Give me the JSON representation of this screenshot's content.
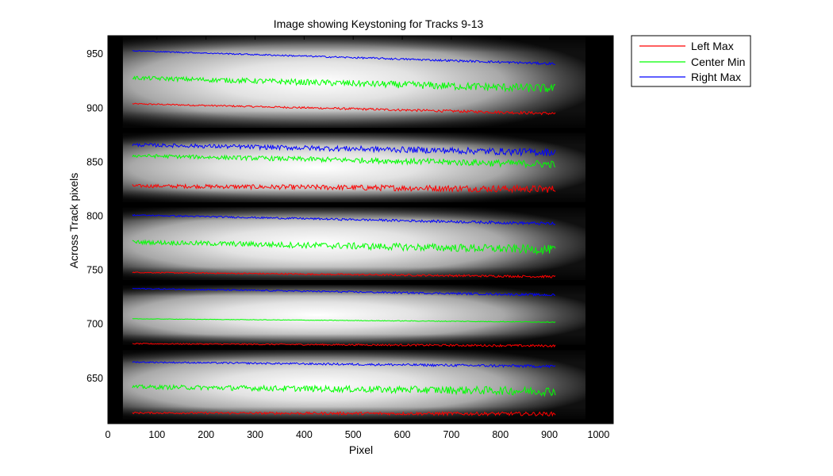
{
  "chart_data": {
    "type": "line",
    "title": "Image showing Keystoning for Tracks 9-13",
    "xlabel": "Pixel",
    "ylabel": "Across Track pixels",
    "xlim": [
      0,
      1030
    ],
    "ylim": [
      608,
      967
    ],
    "xticks": [
      0,
      100,
      200,
      300,
      400,
      500,
      600,
      700,
      800,
      900,
      1000
    ],
    "yticks": [
      650,
      700,
      750,
      800,
      850,
      900,
      950
    ],
    "grid": false,
    "legend_position": "outside-top-right",
    "background": "grayscale intensity image of tracks",
    "legend": [
      {
        "name": "Left Max",
        "color": "#ff0000"
      },
      {
        "name": "Center Min",
        "color": "#00ff00"
      },
      {
        "name": "Right Max",
        "color": "#0000ff"
      }
    ],
    "tracks": [
      {
        "y_top": 967,
        "y_bottom": 882
      },
      {
        "y_top": 877,
        "y_bottom": 813
      },
      {
        "y_top": 808,
        "y_bottom": 741
      },
      {
        "y_top": 736,
        "y_bottom": 681
      },
      {
        "y_top": 676,
        "y_bottom": 612
      }
    ],
    "x_range": [
      50,
      912
    ],
    "series": [
      {
        "name": "Left Max",
        "color": "#ff0000",
        "per_track": [
          {
            "start": 904,
            "end": 895,
            "noise": 1.0
          },
          {
            "start": 828,
            "end": 825,
            "noise": 2.5
          },
          {
            "start": 748,
            "end": 744,
            "noise": 0.8
          },
          {
            "start": 682,
            "end": 680,
            "noise": 0.8
          },
          {
            "start": 618,
            "end": 617,
            "noise": 1.3
          }
        ]
      },
      {
        "name": "Center Min",
        "color": "#00ff00",
        "per_track": [
          {
            "start": 928,
            "end": 918,
            "noise": 3.0
          },
          {
            "start": 856,
            "end": 848,
            "noise": 2.5
          },
          {
            "start": 776,
            "end": 769,
            "noise": 3.0
          },
          {
            "start": 705,
            "end": 702,
            "noise": 0.3
          },
          {
            "start": 642,
            "end": 638,
            "noise": 3.0
          }
        ]
      },
      {
        "name": "Right Max",
        "color": "#0000ff",
        "per_track": [
          {
            "start": 953,
            "end": 941,
            "noise": 0.8
          },
          {
            "start": 866,
            "end": 859,
            "noise": 2.5
          },
          {
            "start": 801,
            "end": 793,
            "noise": 1.0
          },
          {
            "start": 733,
            "end": 727,
            "noise": 0.8
          },
          {
            "start": 665,
            "end": 661,
            "noise": 1.0
          }
        ]
      }
    ]
  }
}
